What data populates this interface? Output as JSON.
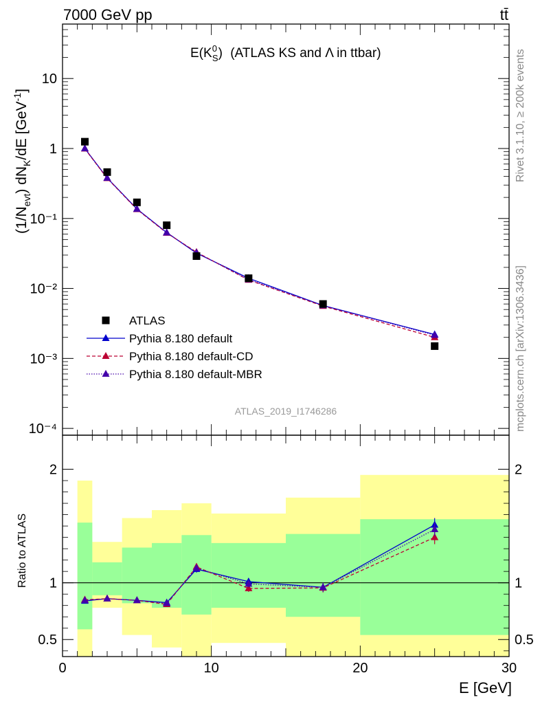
{
  "header": {
    "energy_label": "7000 GeV pp",
    "process_label": "tt̄"
  },
  "side_labels": {
    "rivet": "Rivet 3.1.10, ≥ 200k events",
    "mcplots": "mcplots.cern.ch [arXiv:1306.3436]"
  },
  "chart_data": [
    {
      "type": "scatter",
      "title": "(ATLAS KS and Λ in ttbar)",
      "title_math": "E(K⁰_S)",
      "analysis_id": "ATLAS_2019_I1746286",
      "xlabel": "E [GeV]",
      "ylabel": "(1/N_evt) dN_K/dE [GeV⁻¹]",
      "xlim": [
        0,
        30
      ],
      "ylim": [
        8e-05,
        60
      ],
      "yscale": "log",
      "y_tick_labels": [
        "10",
        "1",
        "10⁻¹",
        "10⁻²",
        "10⁻³",
        "10⁻⁴"
      ],
      "x_tick_labels": [
        "0",
        "10",
        "20",
        "30"
      ],
      "legend_position": "lower-left",
      "x": [
        1.5,
        3,
        5,
        7,
        9,
        12.5,
        17.5,
        25
      ],
      "series": [
        {
          "name": "ATLAS",
          "style": "marker",
          "marker": "square",
          "color": "#000000",
          "values": [
            1.25,
            0.46,
            0.17,
            0.08,
            0.029,
            0.014,
            0.006,
            0.0015
          ]
        },
        {
          "name": "Pythia 8.180 default",
          "style": "solid",
          "marker": "triangle",
          "color": "#0000cc",
          "values": [
            1.0,
            0.38,
            0.137,
            0.063,
            0.032,
            0.014,
            0.0057,
            0.0022
          ]
        },
        {
          "name": "Pythia 8.180 default-CD",
          "style": "dashed",
          "marker": "triangle",
          "color": "#bb0033",
          "values": [
            0.99,
            0.375,
            0.135,
            0.062,
            0.033,
            0.0132,
            0.0056,
            0.002
          ]
        },
        {
          "name": "Pythia 8.180 default-MBR",
          "style": "dotted",
          "marker": "triangle",
          "color": "#4400aa",
          "values": [
            1.0,
            0.378,
            0.136,
            0.0625,
            0.0325,
            0.0134,
            0.0057,
            0.00215
          ]
        }
      ]
    },
    {
      "type": "line",
      "ylabel": "Ratio to ATLAS",
      "xlabel": "E [GeV]",
      "xlim": [
        0,
        30
      ],
      "ylim": [
        0.35,
        2.3
      ],
      "y_tick_labels": [
        "0.5",
        "1",
        "2"
      ],
      "x": [
        1.5,
        3,
        5,
        7,
        9,
        12.5,
        17.5,
        25
      ],
      "bands": {
        "edges": [
          1,
          2,
          4,
          6,
          8,
          10,
          15,
          20,
          30
        ],
        "yellow_low": [
          0.35,
          0.78,
          0.54,
          0.43,
          0.35,
          0.47,
          0.35,
          0.35
        ],
        "yellow_high": [
          1.9,
          1.36,
          1.57,
          1.64,
          1.7,
          1.61,
          1.75,
          1.95
        ],
        "green_low": [
          0.59,
          0.89,
          0.82,
          0.78,
          0.72,
          0.78,
          0.7,
          0.54
        ],
        "green_high": [
          1.53,
          1.18,
          1.31,
          1.35,
          1.42,
          1.35,
          1.43,
          1.56
        ],
        "yellow_color": "#ffff99",
        "green_color": "#99ff99"
      },
      "series": [
        {
          "name": "Pythia 8.180 default",
          "style": "solid",
          "color": "#0000cc",
          "values": [
            0.84,
            0.86,
            0.845,
            0.825,
            1.12,
            1.01,
            0.96,
            1.51
          ],
          "errors": [
            0.01,
            0.01,
            0.01,
            0.02,
            0.03,
            0.03,
            0.04,
            0.06
          ]
        },
        {
          "name": "Pythia 8.180 default-CD",
          "style": "dashed",
          "color": "#bb0033",
          "values": [
            0.85,
            0.86,
            0.845,
            0.81,
            1.14,
            0.95,
            0.955,
            1.4
          ],
          "errors": [
            0.01,
            0.01,
            0.01,
            0.02,
            0.03,
            0.03,
            0.04,
            0.06
          ]
        },
        {
          "name": "Pythia 8.180 default-MBR",
          "style": "dotted",
          "color": "#4400aa",
          "values": [
            0.845,
            0.86,
            0.845,
            0.82,
            1.13,
            0.99,
            0.96,
            1.47
          ],
          "errors": [
            0.01,
            0.01,
            0.01,
            0.02,
            0.03,
            0.03,
            0.04,
            0.06
          ]
        }
      ]
    }
  ]
}
